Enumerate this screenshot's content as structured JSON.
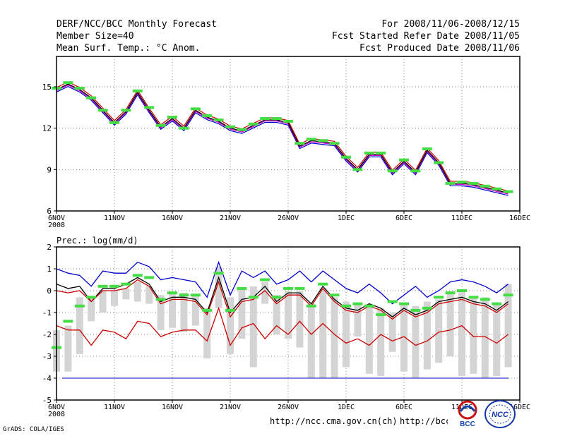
{
  "header": {
    "left": [
      "DERF/NCC/BCC Monthly Forecast",
      "Member Size=40",
      "Mean Surf. Temp.: °C Anom."
    ],
    "right": [
      "For 2008/11/06-2008/12/15",
      "Fcst Started Refer Date 2008/11/05",
      "Fcst Produced Date 2008/11/06"
    ]
  },
  "footer": {
    "credit": "GrADS: COLA/IGES",
    "url1": "http://ncc.cma.gov.cn(ch)",
    "url2": "http://bcc.cma.gov.cn",
    "logo_bcc": "BCC",
    "logo_ncc": "NCC"
  },
  "colors": {
    "mean": "#000000",
    "upper": "#0000cc",
    "lower": "#cc0000",
    "marker": "#44dd44",
    "bar": "#d4d4d4",
    "baseline": "#0000cc",
    "grid": "#888888"
  },
  "chart_data": [
    {
      "type": "line",
      "title": "Mean Surf. Temp.: °C Anom.",
      "xlabel": "",
      "ylabel": "",
      "ylim": [
        6,
        17.2
      ],
      "yticks": [
        6,
        9,
        12,
        15
      ],
      "xticks": [
        {
          "x": 0,
          "label": "6NOV",
          "sub": "2008"
        },
        {
          "x": 5,
          "label": "11NOV"
        },
        {
          "x": 10,
          "label": "16NOV"
        },
        {
          "x": 15,
          "label": "21NOV"
        },
        {
          "x": 20,
          "label": "26NOV"
        },
        {
          "x": 25,
          "label": "1DEC"
        },
        {
          "x": 30,
          "label": "6DEC"
        },
        {
          "x": 35,
          "label": "11DEC"
        },
        {
          "x": 40,
          "label": "16DEC"
        }
      ],
      "grid": true,
      "x": [
        0,
        1,
        2,
        3,
        4,
        5,
        6,
        7,
        8,
        9,
        10,
        11,
        12,
        13,
        14,
        15,
        16,
        17,
        18,
        19,
        20,
        21,
        22,
        23,
        24,
        25,
        26,
        27,
        28,
        29,
        30,
        31,
        32,
        33,
        34,
        35,
        36,
        37,
        38,
        39
      ],
      "series": [
        {
          "name": "mean",
          "values": [
            14.8,
            15.2,
            14.8,
            14.2,
            13.3,
            12.4,
            13.2,
            14.6,
            13.3,
            12.1,
            12.7,
            12.0,
            13.3,
            12.8,
            12.5,
            12.0,
            11.8,
            12.2,
            12.6,
            12.6,
            12.4,
            10.7,
            11.1,
            11.0,
            10.9,
            9.8,
            9.0,
            10.1,
            10.1,
            8.8,
            9.6,
            8.8,
            10.4,
            9.5,
            8.0,
            8.0,
            7.9,
            7.7,
            7.5,
            7.3
          ]
        }
      ],
      "markers": [
        14.9,
        15.3,
        14.9,
        14.2,
        13.3,
        12.4,
        13.3,
        14.7,
        13.5,
        12.2,
        12.8,
        12.0,
        13.4,
        12.9,
        12.6,
        12.1,
        11.9,
        12.3,
        12.7,
        12.7,
        12.5,
        10.9,
        11.2,
        11.1,
        10.9,
        9.9,
        9.0,
        10.2,
        10.2,
        8.9,
        9.7,
        8.9,
        10.5,
        9.5,
        8.0,
        8.1,
        8.0,
        7.8,
        7.6,
        7.4
      ]
    },
    {
      "type": "line",
      "title": "Prec.: log(mm/d)",
      "xlabel": "",
      "ylabel": "",
      "ylim": [
        -5,
        2
      ],
      "yticks": [
        -5,
        -4,
        -3,
        -2,
        -1,
        0,
        1,
        2
      ],
      "xticks": [
        {
          "x": 0,
          "label": "6NOV",
          "sub": "2008"
        },
        {
          "x": 5,
          "label": "11NOV"
        },
        {
          "x": 10,
          "label": "16NOV"
        },
        {
          "x": 15,
          "label": "21NOV"
        },
        {
          "x": 20,
          "label": "26NOV"
        },
        {
          "x": 25,
          "label": "1DEC"
        },
        {
          "x": 30,
          "label": "6DEC"
        },
        {
          "x": 35,
          "label": "11DEC"
        },
        {
          "x": 40,
          "label": "16DEC"
        }
      ],
      "grid": true,
      "baseline": -4,
      "x": [
        0,
        1,
        2,
        3,
        4,
        5,
        6,
        7,
        8,
        9,
        10,
        11,
        12,
        13,
        14,
        15,
        16,
        17,
        18,
        19,
        20,
        21,
        22,
        23,
        24,
        25,
        26,
        27,
        28,
        29,
        30,
        31,
        32,
        33,
        34,
        35,
        36,
        37,
        38,
        39
      ],
      "series": [
        {
          "name": "upper",
          "values": [
            1.0,
            0.8,
            0.7,
            0.2,
            0.9,
            0.8,
            0.8,
            1.3,
            1.1,
            0.5,
            0.6,
            0.5,
            0.4,
            -0.3,
            1.3,
            -0.2,
            0.9,
            0.6,
            0.9,
            0.3,
            0.5,
            0.9,
            0.4,
            0.9,
            0.5,
            0.1,
            -0.1,
            0.3,
            -0.1,
            -0.6,
            -0.2,
            0.2,
            -0.3,
            0.0,
            0.4,
            0.5,
            0.4,
            0.2,
            -0.1,
            0.3
          ]
        },
        {
          "name": "mean",
          "values": [
            0.3,
            0.1,
            0.2,
            -0.5,
            0.1,
            0.1,
            0.3,
            0.6,
            0.3,
            -0.5,
            -0.3,
            -0.3,
            -0.4,
            -1.0,
            0.6,
            -1.0,
            -0.4,
            -0.3,
            0.2,
            -0.5,
            -0.1,
            -0.1,
            -0.6,
            0.2,
            -0.4,
            -0.8,
            -0.9,
            -0.6,
            -0.8,
            -1.2,
            -0.8,
            -1.1,
            -0.9,
            -0.5,
            -0.4,
            -0.3,
            -0.5,
            -0.6,
            -0.9,
            -0.5
          ]
        },
        {
          "name": "lower",
          "values": [
            0.0,
            -0.1,
            0.0,
            -0.5,
            0.0,
            0.0,
            0.1,
            0.5,
            0.2,
            -0.6,
            -0.4,
            -0.4,
            -0.5,
            -1.1,
            0.4,
            -1.2,
            -0.5,
            -0.4,
            0.0,
            -0.6,
            -0.2,
            -0.2,
            -0.7,
            0.1,
            -0.5,
            -0.9,
            -1.0,
            -0.7,
            -0.9,
            -1.3,
            -0.9,
            -1.2,
            -1.0,
            -0.6,
            -0.5,
            -0.4,
            -0.6,
            -0.7,
            -1.0,
            -0.6
          ]
        },
        {
          "name": "lowest",
          "values": [
            -1.6,
            -1.8,
            -1.8,
            -2.5,
            -1.8,
            -1.9,
            -2.2,
            -1.4,
            -1.5,
            -2.1,
            -1.9,
            -1.8,
            -1.8,
            -2.3,
            -0.8,
            -2.5,
            -1.7,
            -1.5,
            -2.2,
            -1.6,
            -2.0,
            -1.4,
            -2.0,
            -1.5,
            -2.0,
            -2.4,
            -2.2,
            -2.5,
            -2.0,
            -2.3,
            -2.1,
            -2.5,
            -2.3,
            -1.9,
            -1.8,
            -1.6,
            -2.1,
            -2.1,
            -2.4,
            -2.0
          ]
        }
      ],
      "bars": [
        [
          -1.8,
          -3.7
        ],
        [
          -1.6,
          -3.7
        ],
        [
          -0.3,
          -2.9
        ],
        [
          -0.3,
          -1.4
        ],
        [
          0.0,
          -1.0
        ],
        [
          0.0,
          -0.7
        ],
        [
          0.1,
          -0.4
        ],
        [
          0.4,
          -0.5
        ],
        [
          0.2,
          -0.6
        ],
        [
          -0.2,
          -1.8
        ],
        [
          -0.1,
          -1.7
        ],
        [
          -0.1,
          -1.9
        ],
        [
          -0.2,
          -1.6
        ],
        [
          -0.8,
          -3.1
        ],
        [
          1.1,
          -0.8
        ],
        [
          -0.3,
          -2.9
        ],
        [
          0.1,
          -2.2
        ],
        [
          0.2,
          -3.5
        ],
        [
          0.4,
          -0.6
        ],
        [
          -0.2,
          -2.0
        ],
        [
          0.0,
          -2.2
        ],
        [
          0.0,
          -2.6
        ],
        [
          -0.6,
          -4.0
        ],
        [
          0.1,
          -4.0
        ],
        [
          -0.3,
          -4.0
        ],
        [
          -0.5,
          -3.5
        ],
        [
          -0.6,
          -2.1
        ],
        [
          -0.6,
          -3.8
        ],
        [
          -0.8,
          -3.9
        ],
        [
          -1.0,
          -2.8
        ],
        [
          -0.6,
          -3.7
        ],
        [
          -0.7,
          -4.0
        ],
        [
          -0.5,
          -3.6
        ],
        [
          -0.4,
          -3.3
        ],
        [
          -0.1,
          -3.0
        ],
        [
          0.0,
          -3.9
        ],
        [
          -0.3,
          -3.8
        ],
        [
          -0.3,
          -4.0
        ],
        [
          -0.6,
          -3.9
        ],
        [
          0.3,
          -3.5
        ]
      ],
      "markers": [
        -2.6,
        -1.4,
        -0.7,
        -0.3,
        0.2,
        0.2,
        0.3,
        0.7,
        0.6,
        -0.4,
        -0.1,
        -0.2,
        -0.2,
        -0.9,
        0.8,
        -0.9,
        0.1,
        -0.3,
        0.5,
        -0.3,
        0.1,
        0.1,
        -0.7,
        0.3,
        -0.2,
        -0.7,
        -0.6,
        -0.7,
        -1.1,
        -0.5,
        -0.6,
        -0.9,
        -0.8,
        -0.3,
        -0.1,
        0.0,
        -0.3,
        -0.4,
        -0.6,
        -0.2
      ]
    }
  ]
}
